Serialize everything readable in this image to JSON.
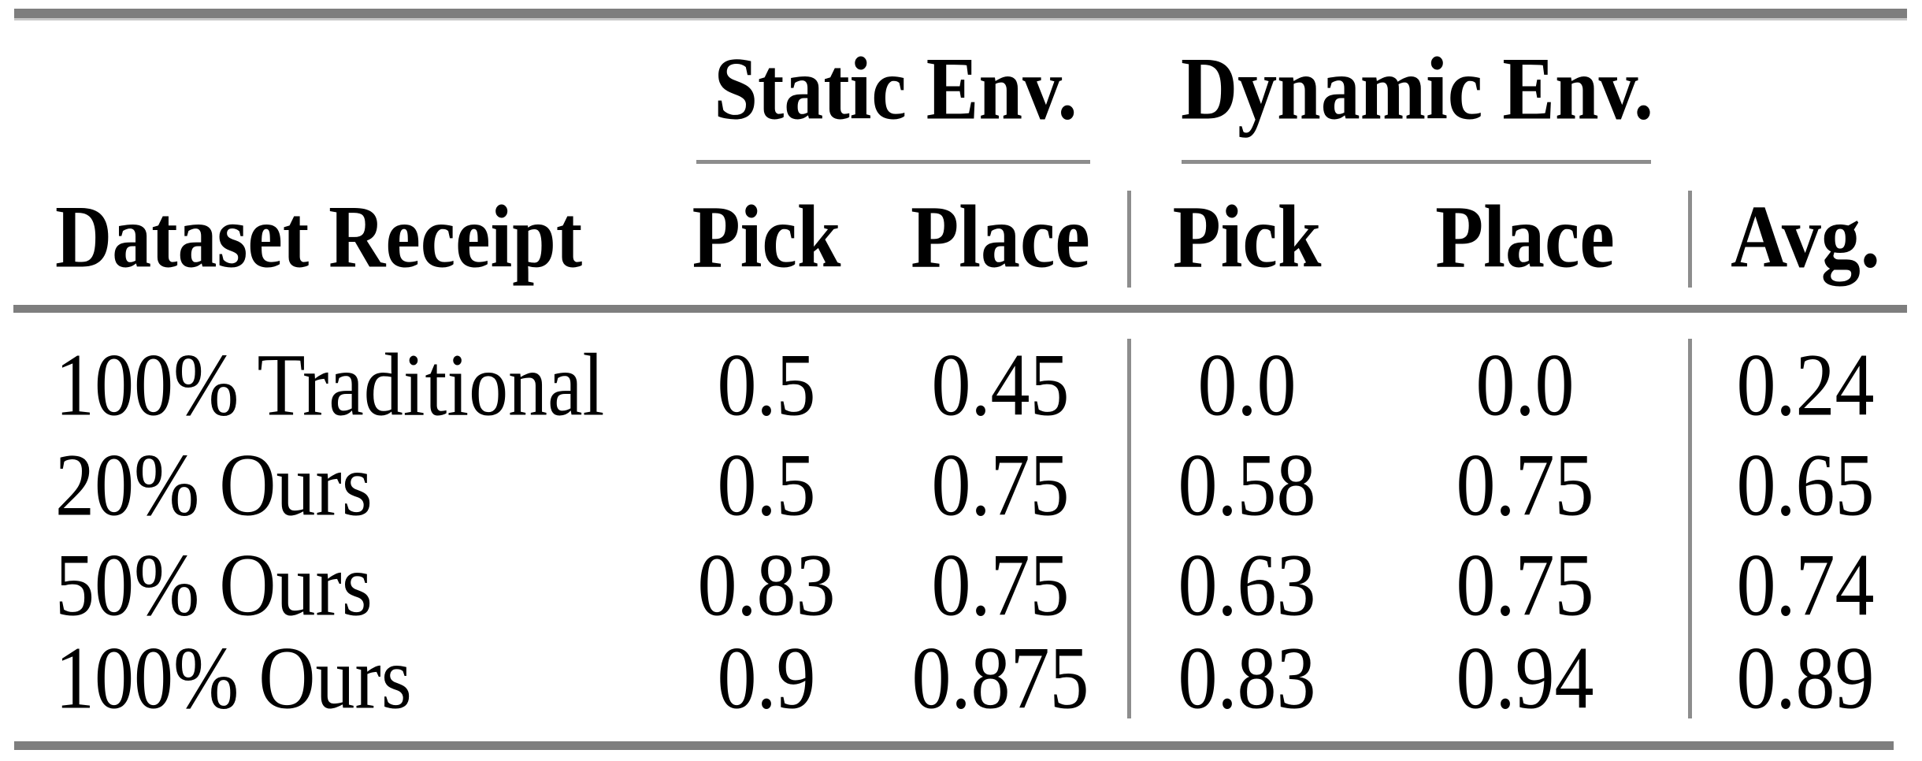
{
  "colors": {
    "background": "#ffffff",
    "rule_heavy": "#7e7e7e",
    "rule_light": "#8d8d8d",
    "text": "#000000"
  },
  "header": {
    "row_label": "Dataset Receipt",
    "groups": [
      {
        "label": "Static Env.",
        "columns": [
          "Pick",
          "Place"
        ]
      },
      {
        "label": "Dynamic Env.",
        "columns": [
          "Pick",
          "Place"
        ]
      }
    ],
    "avg_label": "Avg."
  },
  "rows": [
    {
      "label": "100% Traditional",
      "static_pick": "0.5",
      "static_place": "0.45",
      "dynamic_pick": "0.0",
      "dynamic_place": "0.0",
      "avg": "0.24"
    },
    {
      "label": "20% Ours",
      "static_pick": "0.5",
      "static_place": "0.75",
      "dynamic_pick": "0.58",
      "dynamic_place": "0.75",
      "avg": "0.65"
    },
    {
      "label": "50% Ours",
      "static_pick": "0.83",
      "static_place": "0.75",
      "dynamic_pick": "0.63",
      "dynamic_place": "0.75",
      "avg": "0.74"
    },
    {
      "label": "100% Ours",
      "static_pick": "0.9",
      "static_place": "0.875",
      "dynamic_pick": "0.83",
      "dynamic_place": "0.94",
      "avg": "0.89"
    }
  ]
}
